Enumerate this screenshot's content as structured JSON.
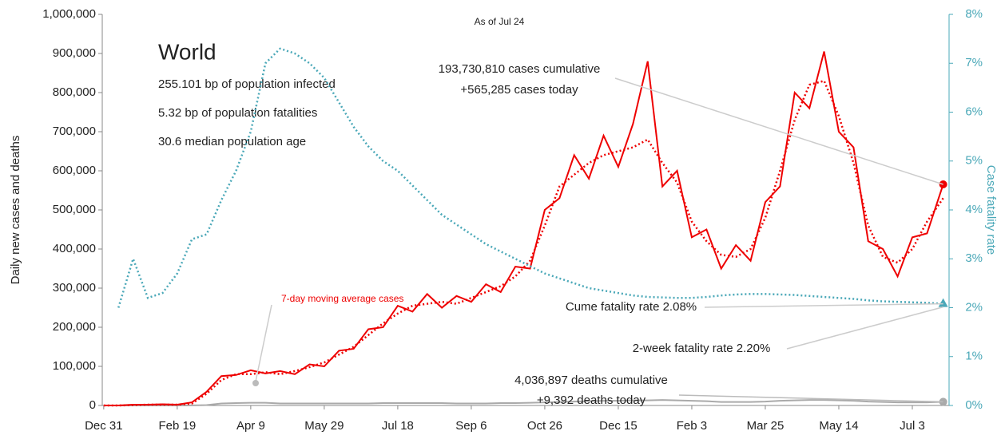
{
  "chart_data": {
    "type": "line",
    "subtitle": "As of Jul 24",
    "panel_title": "World",
    "panel_lines": [
      "255.101 bp of population infected",
      "5.32 bp of population fatalities",
      "30.6 median population age"
    ],
    "ylabel": "Daily new cases and deaths",
    "y2label": "Case fatality rate",
    "annotations": [
      "193,730,810 cases cumulative",
      "+565,285 cases today",
      "7-day moving average cases",
      "Cume fatality rate 2.08%",
      "2-week fatality rate 2.20%",
      "4,036,897 deaths cumulative",
      "+9,392 deaths today"
    ],
    "x": [
      0,
      10,
      20,
      30,
      40,
      50,
      60,
      70,
      80,
      90,
      100,
      110,
      120,
      130,
      140,
      150,
      160,
      170,
      180,
      190,
      200,
      210,
      220,
      230,
      240,
      250,
      260,
      270,
      280,
      290,
      300,
      310,
      320,
      330,
      340,
      350,
      360,
      370,
      380,
      390,
      400,
      410,
      420,
      430,
      440,
      450,
      460,
      470,
      480,
      490,
      500,
      510,
      520,
      530,
      540,
      550,
      560,
      571
    ],
    "xlim": [
      -1,
      575
    ],
    "xticks": [
      {
        "value": 0,
        "label": "Dec 31"
      },
      {
        "value": 50,
        "label": "Feb 19"
      },
      {
        "value": 100,
        "label": "Apr 9"
      },
      {
        "value": 150,
        "label": "May 29"
      },
      {
        "value": 200,
        "label": "Jul 18"
      },
      {
        "value": 250,
        "label": "Sep 6"
      },
      {
        "value": 300,
        "label": "Oct 26"
      },
      {
        "value": 350,
        "label": "Dec 15"
      },
      {
        "value": 400,
        "label": "Feb 3"
      },
      {
        "value": 450,
        "label": "Mar 25"
      },
      {
        "value": 500,
        "label": "May 14"
      },
      {
        "value": 550,
        "label": "Jul 3"
      }
    ],
    "ylim": [
      0,
      1000000
    ],
    "yticks": [
      0,
      {
        "value": 100000,
        "label": "100,000"
      },
      {
        "value": 200000,
        "label": "200,000"
      },
      {
        "value": 300000,
        "label": "300,000"
      },
      {
        "value": 400000,
        "label": "400,000"
      },
      {
        "value": 500000,
        "label": "500,000"
      },
      {
        "value": 600000,
        "label": "600,000"
      },
      {
        "value": 700000,
        "label": "700,000"
      },
      {
        "value": 800000,
        "label": "800,000"
      },
      {
        "value": 900000,
        "label": "900,000"
      },
      {
        "value": 1000000,
        "label": "1,000,000"
      }
    ],
    "y2lim": [
      0,
      8
    ],
    "y2ticks": [
      {
        "value": 0,
        "label": "0%"
      },
      {
        "value": 1,
        "label": "1%"
      },
      {
        "value": 2,
        "label": "2%"
      },
      {
        "value": 3,
        "label": "3%"
      },
      {
        "value": 4,
        "label": "4%"
      },
      {
        "value": 5,
        "label": "5%"
      },
      {
        "value": 6,
        "label": "6%"
      },
      {
        "value": 7,
        "label": "7%"
      },
      {
        "value": 8,
        "label": "8%"
      }
    ],
    "series": [
      {
        "name": "Daily cases",
        "color": "#ee0000",
        "style": "solid",
        "values": [
          0,
          0,
          2000,
          2000,
          3000,
          2000,
          8000,
          35000,
          75000,
          78000,
          90000,
          82000,
          88000,
          80000,
          105000,
          100000,
          140000,
          145000,
          195000,
          200000,
          255000,
          240000,
          285000,
          250000,
          280000,
          265000,
          310000,
          290000,
          355000,
          350000,
          500000,
          530000,
          640000,
          580000,
          690000,
          610000,
          720000,
          880000,
          560000,
          600000,
          430000,
          450000,
          350000,
          410000,
          370000,
          520000,
          560000,
          800000,
          760000,
          905000,
          700000,
          660000,
          420000,
          400000,
          330000,
          430000,
          440000,
          565285
        ]
      },
      {
        "name": "7-day moving average cases",
        "color": "#ee0000",
        "style": "dotted",
        "values": [
          0,
          0,
          1000,
          2000,
          2000,
          2000,
          5000,
          30000,
          65000,
          80000,
          80000,
          85000,
          80000,
          88000,
          98000,
          110000,
          130000,
          150000,
          180000,
          210000,
          235000,
          255000,
          260000,
          265000,
          260000,
          275000,
          290000,
          305000,
          330000,
          370000,
          460000,
          560000,
          590000,
          620000,
          640000,
          650000,
          660000,
          680000,
          620000,
          570000,
          470000,
          420000,
          385000,
          380000,
          400000,
          480000,
          600000,
          730000,
          820000,
          830000,
          740000,
          620000,
          460000,
          380000,
          365000,
          400000,
          470000,
          530000
        ]
      },
      {
        "name": "Daily deaths",
        "color": "#aaaaaa",
        "style": "solid",
        "values": [
          0,
          0,
          0,
          0,
          100,
          100,
          200,
          1000,
          5000,
          6000,
          7000,
          7000,
          5000,
          5000,
          5000,
          5000,
          5000,
          5000,
          5000,
          6000,
          6000,
          6000,
          6000,
          6000,
          5000,
          5000,
          5000,
          6000,
          6000,
          7000,
          8000,
          9000,
          10000,
          11000,
          12000,
          12000,
          13000,
          13000,
          14000,
          13000,
          12000,
          11000,
          9000,
          9000,
          9000,
          10000,
          12000,
          13000,
          14000,
          14000,
          13000,
          12000,
          10000,
          9000,
          8000,
          8000,
          8000,
          9392
        ]
      },
      {
        "name": "Case fatality rate",
        "color": "#4aa8b8",
        "style": "dotted",
        "axis": "y2",
        "values": [
          null,
          2.0,
          3.0,
          2.2,
          2.3,
          2.7,
          3.4,
          3.5,
          4.2,
          4.8,
          5.6,
          7.0,
          7.3,
          7.2,
          7.0,
          6.7,
          6.2,
          5.7,
          5.3,
          5.0,
          4.8,
          4.5,
          4.2,
          3.9,
          3.7,
          3.5,
          3.3,
          3.15,
          3.0,
          2.85,
          2.7,
          2.6,
          2.5,
          2.4,
          2.35,
          2.3,
          2.25,
          2.22,
          2.21,
          2.2,
          2.2,
          2.22,
          2.25,
          2.27,
          2.28,
          2.28,
          2.27,
          2.26,
          2.24,
          2.22,
          2.2,
          2.18,
          2.15,
          2.13,
          2.12,
          2.11,
          2.1,
          2.08
        ]
      }
    ]
  }
}
